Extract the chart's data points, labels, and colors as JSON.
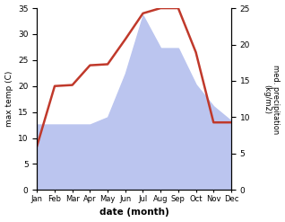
{
  "months": [
    "Jan",
    "Feb",
    "Mar",
    "Apr",
    "May",
    "Jun",
    "Jul",
    "Aug",
    "Sep",
    "Oct",
    "Nov",
    "Dec"
  ],
  "temp": [
    8.5,
    20.0,
    20.2,
    24.0,
    24.2,
    29.0,
    34.0,
    35.0,
    35.0,
    26.5,
    13.0,
    13.0
  ],
  "precip_kg": [
    9.0,
    9.0,
    9.0,
    9.0,
    10.0,
    16.0,
    24.0,
    19.5,
    19.5,
    14.5,
    11.5,
    9.5
  ],
  "temp_color": "#c0392b",
  "precip_fill_color": "#bbc5ef",
  "temp_ylim": [
    0,
    35
  ],
  "precip_ylim": [
    0,
    25
  ],
  "temp_yticks": [
    0,
    5,
    10,
    15,
    20,
    25,
    30,
    35
  ],
  "precip_yticks": [
    0,
    5,
    10,
    15,
    20,
    25
  ],
  "xlabel": "date (month)",
  "ylabel_left": "max temp (C)",
  "ylabel_right": "med. precipitation\n(kg/m2)",
  "bg_color": "#ffffff"
}
